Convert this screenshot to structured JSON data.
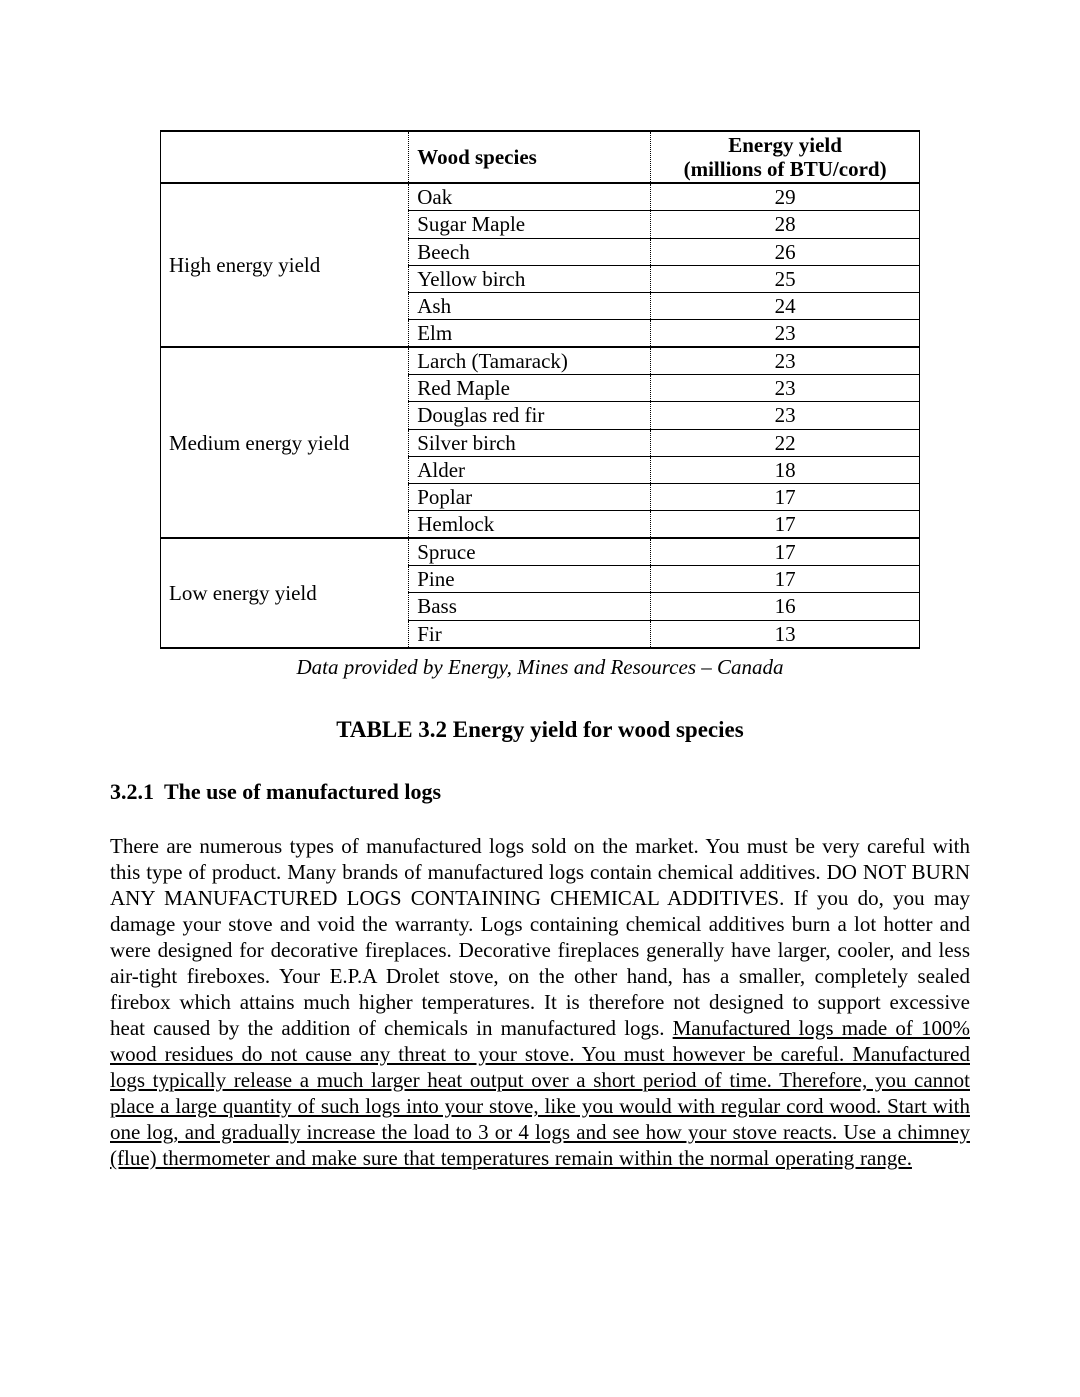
{
  "table": {
    "headers": {
      "group_blank": "",
      "species": "Wood species",
      "yield_line1": "Energy yield",
      "yield_line2": "(millions of BTU/cord)"
    },
    "groups": [
      {
        "label": "High energy yield",
        "rows": [
          {
            "species": "Oak",
            "yield": "29"
          },
          {
            "species": "Sugar Maple",
            "yield": "28"
          },
          {
            "species": "Beech",
            "yield": "26"
          },
          {
            "species": "Yellow birch",
            "yield": "25"
          },
          {
            "species": "Ash",
            "yield": "24"
          },
          {
            "species": "Elm",
            "yield": "23"
          }
        ]
      },
      {
        "label": "Medium energy yield",
        "rows": [
          {
            "species": "Larch (Tamarack)",
            "yield": "23"
          },
          {
            "species": "Red Maple",
            "yield": "23"
          },
          {
            "species": "Douglas red fir",
            "yield": "23"
          },
          {
            "species": "Silver birch",
            "yield": "22"
          },
          {
            "species": "Alder",
            "yield": "18"
          },
          {
            "species": "Poplar",
            "yield": "17"
          },
          {
            "species": "Hemlock",
            "yield": "17"
          }
        ]
      },
      {
        "label": "Low energy yield",
        "rows": [
          {
            "species": "Spruce",
            "yield": "17"
          },
          {
            "species": "Pine",
            "yield": "17"
          },
          {
            "species": "Bass",
            "yield": "16"
          },
          {
            "species": "Fir",
            "yield": "13"
          }
        ]
      }
    ],
    "caption": "Data provided by Energy, Mines and Resources – Canada",
    "title": "TABLE 3.2 Energy yield for wood species"
  },
  "section": {
    "number": "3.2.1",
    "title": "The use of manufactured logs"
  },
  "paragraph": {
    "part1": "There are numerous types of manufactured logs sold on the market.   You must be very careful with this type of product.  Many brands of manufactured logs contain chemical  additives.  DO NOT BURN ANY MANUFACTURED LOGS CONTAINING CHEMICAL ADDITIVES.  If you do, you may damage your stove and void the warranty.  Logs containing chemical additives burn a lot hotter and were designed for decorative fireplaces.  Decorative fireplaces generally have larger, cooler, and less air-tight fireboxes. Your E.P.A Drolet stove, on the other hand, has a smaller, completely sealed firebox which attains much higher temperatures.  It is therefore not designed  to support  excessive heat caused by the addition of chemicals in  manufactured logs.  ",
    "underlined": "Manufactured logs made of 100% wood residues do not cause any threat to your stove.  You must however be careful.  Manufactured logs typically release a much larger heat output over a short period of time.  Therefore, you cannot place a large quantity of such logs into your stove, like you would with regular cord wood.  Start with one log, and gradually increase the load to 3 or 4 logs and see how your stove reacts.  Use a chimney (flue) thermometer and make sure that temperatures remain within the normal operating range."
  }
}
